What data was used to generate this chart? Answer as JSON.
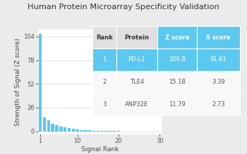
{
  "title": "Human Protein Microarray Specificity Validation",
  "xlabel": "Signal Rank",
  "ylabel": "Strength of Signal (Z score)",
  "xlim": [
    0.5,
    30.5
  ],
  "ylim": [
    -3,
    112
  ],
  "yticks": [
    0,
    26,
    52,
    78,
    104
  ],
  "xticks": [
    1,
    10,
    20,
    30
  ],
  "bar_color": "#5bc8f0",
  "background_color": "#ebebeb",
  "plot_bg_color": "#ffffff",
  "table_header_bg": "#5bc8f0",
  "table_header_text": "#ffffff",
  "table_row1_bg": "#5bc8f0",
  "table_row1_text": "#ffffff",
  "table_row_text": "#555555",
  "table_headers": [
    "Rank",
    "Protein",
    "Z score",
    "S score"
  ],
  "table_data": [
    [
      "1",
      "PD-L1",
      "106.8",
      "91.61"
    ],
    [
      "2",
      "TLE4",
      "15.18",
      "3.39"
    ],
    [
      "3",
      "ANP32E",
      "11.79",
      "2.73"
    ]
  ],
  "signal_values": [
    106.8,
    15.18,
    11.79,
    8.5,
    6.5,
    5.2,
    4.1,
    3.5,
    2.8,
    2.0,
    1.5,
    1.2,
    1.0,
    0.8,
    0.6,
    0.5,
    0.4,
    0.3,
    0.2,
    0.15,
    0.1,
    0.08,
    0.06,
    0.05,
    0.04,
    0.03,
    0.02,
    0.01,
    0.005,
    0.001
  ],
  "title_fontsize": 8.2,
  "axis_label_fontsize": 6.5,
  "tick_fontsize": 6,
  "table_fontsize": 6
}
